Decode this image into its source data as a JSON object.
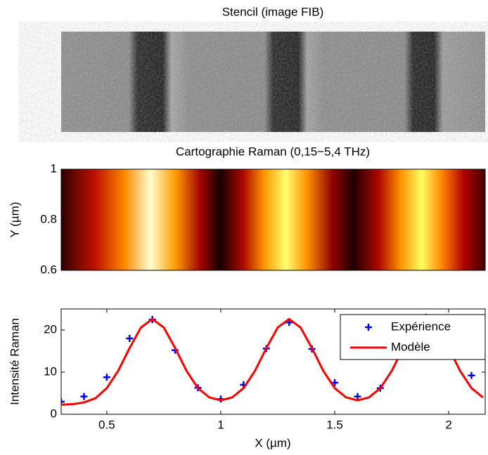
{
  "chart_data": [
    {
      "type": "image",
      "title": "Stencil (image FIB)"
    },
    {
      "type": "heatmap",
      "title": "Cartographie Raman (0,15−5,4 THz)",
      "ylabel": "Y (µm)",
      "ylim": [
        0.6,
        1
      ],
      "yticks": [
        0.6,
        0.8,
        1
      ]
    },
    {
      "type": "line",
      "xlabel": "X (µm)",
      "ylabel": "Intensité Raman",
      "xlim": [
        0.3,
        2.16
      ],
      "ylim": [
        0,
        25
      ],
      "xticks": [
        0.5,
        1,
        1.5,
        2
      ],
      "yticks": [
        0,
        10,
        20
      ],
      "legend": "upper right",
      "series": [
        {
          "name": "Expérience",
          "color": "#0000ff",
          "marker": "+",
          "x": [
            0.3,
            0.4,
            0.5,
            0.6,
            0.7,
            0.8,
            0.9,
            1.0,
            1.1,
            1.2,
            1.3,
            1.4,
            1.5,
            1.6,
            1.7,
            1.9,
            2.1
          ],
          "values": [
            3,
            4.2,
            8.8,
            18,
            22.5,
            15.2,
            6.3,
            3.6,
            7,
            15.6,
            21.8,
            15.5,
            7.5,
            4.2,
            6.2,
            23,
            9.2
          ]
        },
        {
          "name": "Modèle",
          "color": "#ff0000",
          "x": [
            0.3,
            0.35,
            0.4,
            0.45,
            0.5,
            0.55,
            0.6,
            0.65,
            0.7,
            0.75,
            0.8,
            0.85,
            0.9,
            0.95,
            1.0,
            1.05,
            1.1,
            1.15,
            1.2,
            1.25,
            1.3,
            1.35,
            1.4,
            1.45,
            1.5,
            1.55,
            1.6,
            1.65,
            1.7,
            1.75,
            1.8,
            1.85,
            1.9,
            1.95,
            2.0,
            2.05,
            2.1,
            2.15
          ],
          "values": [
            2.3,
            2.4,
            2.8,
            3.8,
            6.2,
            10.3,
            15.7,
            20.6,
            22.6,
            20.6,
            15.7,
            10.3,
            6.2,
            4.0,
            3.3,
            4.0,
            6.2,
            10.3,
            15.7,
            20.6,
            22.6,
            20.6,
            15.7,
            10.3,
            6.2,
            4.0,
            3.3,
            4.0,
            6.2,
            10.3,
            15.7,
            20.6,
            22.6,
            20.6,
            15.7,
            10.3,
            6.2,
            4.0
          ]
        }
      ]
    }
  ]
}
